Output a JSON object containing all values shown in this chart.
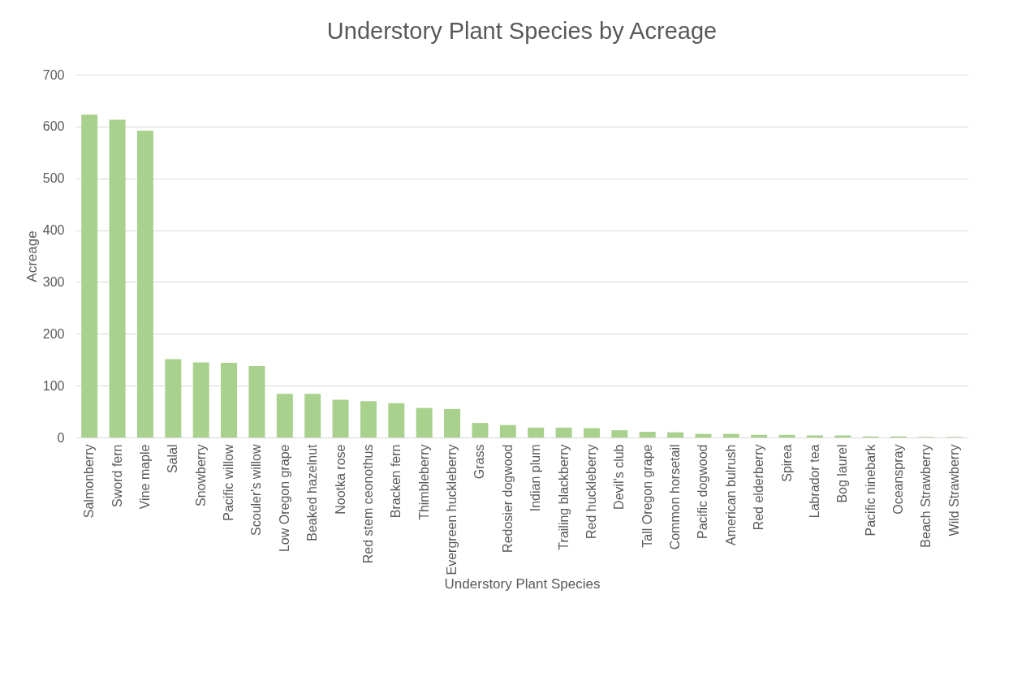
{
  "chart_data": {
    "type": "bar",
    "title": "Understory Plant Species by Acreage",
    "xlabel": "Understory Plant Species",
    "ylabel": "Acreage",
    "categories": [
      "Salmonberry",
      "Sword fern",
      "Vine maple",
      "Salal",
      "Snowberry",
      "Pacific willow",
      "Scouler's willow",
      "Low Oregon grape",
      "Beaked hazelnut",
      "Nootka rose",
      "Red stem ceonothus",
      "Bracken fern",
      "Thimbleberry",
      "Evergreen huckleberry",
      "Grass",
      "Redosier dogwood",
      "Indian plum",
      "Trailing blackberry",
      "Red huckleberry",
      "Devil's club",
      "Tall Oregon grape",
      "Common horsetail",
      "Pacific dogwood",
      "American bulrush",
      "Red elderberry",
      "Spirea",
      "Labrador tea",
      "Bog laurel",
      "Pacific ninebark",
      "Oceanspray",
      "Beach Strawberry",
      "Wild Strawberry"
    ],
    "series": [
      {
        "color": "#a9d18e",
        "values": [
          623,
          613,
          592,
          151,
          145,
          144,
          138,
          84,
          84,
          73,
          70,
          66,
          57,
          55,
          28,
          24,
          19,
          19,
          18,
          14,
          11,
          10,
          7,
          7,
          5,
          5,
          4,
          4,
          2,
          2,
          1,
          1
        ]
      }
    ],
    "ylim": [
      0,
      700
    ],
    "yticks": [
      0,
      100,
      200,
      300,
      400,
      500,
      600,
      700
    ],
    "grid": "y"
  }
}
